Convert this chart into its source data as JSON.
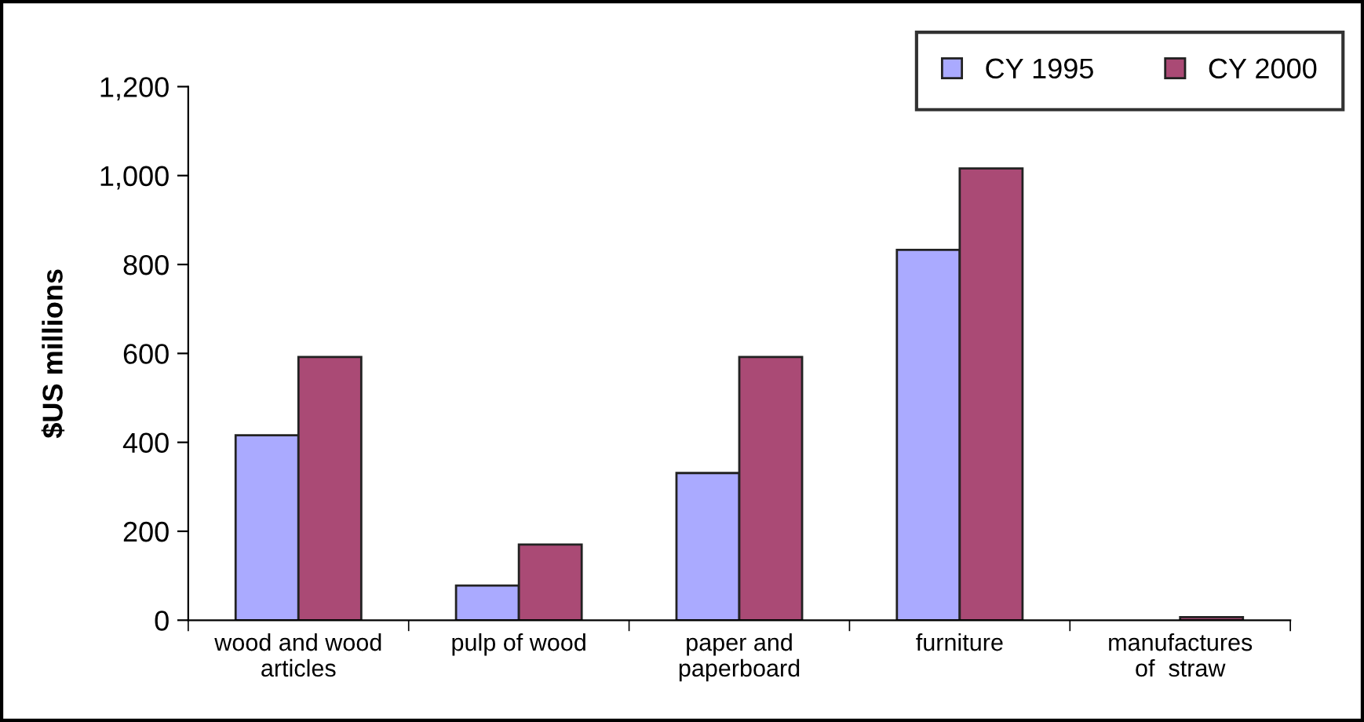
{
  "chart_data": {
    "type": "bar",
    "ylabel": "$US millions",
    "categories": [
      "wood and wood\narticles",
      "pulp of wood",
      "paper and\npaperboard",
      "furniture",
      "manufactures\nof  straw"
    ],
    "series": [
      {
        "name": "CY 1995",
        "color": "#aaaaff",
        "values": [
          416,
          78,
          331,
          833,
          null
        ]
      },
      {
        "name": "CY 2000",
        "color": "#aa4a75",
        "values": [
          592,
          170,
          592,
          1016,
          7
        ]
      }
    ],
    "ylim": [
      0,
      1200
    ],
    "yticks": [
      0,
      {
        "value": 200,
        "label": "200"
      },
      {
        "value": 400,
        "label": "400"
      },
      {
        "value": 600,
        "label": "600"
      },
      {
        "value": 800,
        "label": "800"
      },
      {
        "value": 1000,
        "label": "1,000"
      },
      {
        "value": 1200,
        "label": "1,200"
      }
    ],
    "grid": false,
    "legend": "top right"
  }
}
